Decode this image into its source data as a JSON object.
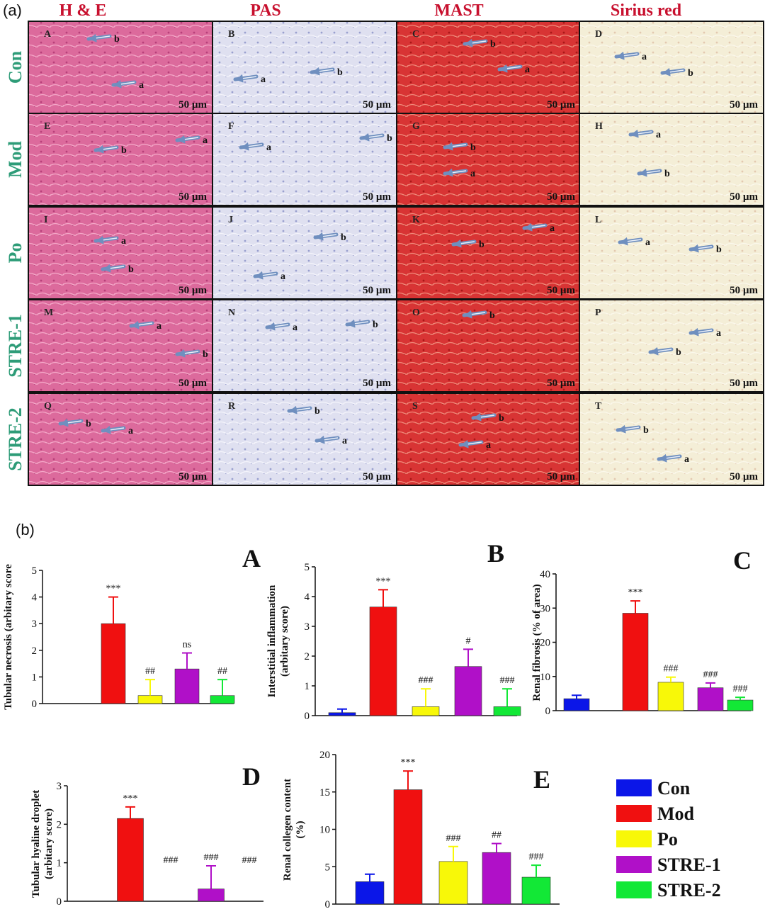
{
  "figure": {
    "panel_a_label": "(a)",
    "panel_b_label": "(b)"
  },
  "histology": {
    "columns": [
      "H & E",
      "PAS",
      "MAST",
      "Sirius red"
    ],
    "rows": [
      "Con",
      "Mod",
      "Po",
      "STRE-1",
      "STRE-2"
    ],
    "tiles": [
      {
        "letter": "A",
        "scale": "50 µm",
        "arrows": [
          "b",
          "a"
        ]
      },
      {
        "letter": "B",
        "scale": "50 µm",
        "arrows": [
          "a",
          "b"
        ]
      },
      {
        "letter": "C",
        "scale": "50 µm",
        "arrows": [
          "b",
          "a"
        ]
      },
      {
        "letter": "D",
        "scale": "50 µm",
        "arrows": [
          "a",
          "b"
        ]
      },
      {
        "letter": "E",
        "scale": "50 µm",
        "arrows": [
          "b",
          "a"
        ]
      },
      {
        "letter": "F",
        "scale": "50 µm",
        "arrows": [
          "a",
          "b"
        ]
      },
      {
        "letter": "G",
        "scale": "50 µm",
        "arrows": [
          "b",
          "a"
        ]
      },
      {
        "letter": "H",
        "scale": "50 µm",
        "arrows": [
          "a",
          "b"
        ]
      },
      {
        "letter": "I",
        "scale": "50 µm",
        "arrows": [
          "a",
          "b"
        ]
      },
      {
        "letter": "J",
        "scale": "50 µm",
        "arrows": [
          "b",
          "a"
        ]
      },
      {
        "letter": "K",
        "scale": "50 µm",
        "arrows": [
          "b",
          "a"
        ]
      },
      {
        "letter": "L",
        "scale": "50 µm",
        "arrows": [
          "a",
          "b"
        ]
      },
      {
        "letter": "M",
        "scale": "50 µm",
        "arrows": [
          "a",
          "b"
        ]
      },
      {
        "letter": "N",
        "scale": "50 µm",
        "arrows": [
          "a",
          "b"
        ]
      },
      {
        "letter": "O",
        "scale": "50 µm",
        "arrows": [
          "b"
        ]
      },
      {
        "letter": "P",
        "scale": "50 µm",
        "arrows": [
          "a",
          "b"
        ]
      },
      {
        "letter": "Q",
        "scale": "50 µm",
        "arrows": [
          "b",
          "a"
        ]
      },
      {
        "letter": "R",
        "scale": "50 µm",
        "arrows": [
          "b",
          "a"
        ]
      },
      {
        "letter": "S",
        "scale": "50 µm",
        "arrows": [
          "b",
          "a"
        ]
      },
      {
        "letter": "T",
        "scale": "50 µm",
        "arrows": [
          "b",
          "a"
        ]
      }
    ],
    "colors": {
      "column_title": "#c8102e",
      "row_label": "#2e9c78",
      "he": "#dc6a9c",
      "pas": "#dfe0f0",
      "mast": "#d83434",
      "sirius": "#f4eed7",
      "arrow": "#6f8fbf"
    }
  },
  "legend": {
    "items": [
      {
        "name": "Con",
        "color": "#0b16e8"
      },
      {
        "name": "Mod",
        "color": "#f01010"
      },
      {
        "name": "Po",
        "color": "#f8f808"
      },
      {
        "name": "STRE-1",
        "color": "#b010c8"
      },
      {
        "name": "STRE-2",
        "color": "#12e836"
      }
    ]
  },
  "chart_data": [
    {
      "type": "bar",
      "panel": "A",
      "ylabel": "Tubular necrosis (arbitary score",
      "ylim": [
        0,
        5
      ],
      "yticks": [
        0,
        1,
        2,
        3,
        4,
        5
      ],
      "categories": [
        "Con",
        "Mod",
        "Po",
        "STRE-1",
        "STRE-2"
      ],
      "values": [
        0,
        3.0,
        0.3,
        1.3,
        0.3
      ],
      "errors": [
        0,
        1.0,
        0.6,
        0.6,
        0.6
      ],
      "annotations": [
        "",
        "***",
        "##",
        "ns",
        "##"
      ]
    },
    {
      "type": "bar",
      "panel": "B",
      "ylabel": [
        "Interstitial inflammation",
        "(arbitary score)"
      ],
      "ylim": [
        0,
        5
      ],
      "yticks": [
        0,
        1,
        2,
        3,
        4,
        5
      ],
      "categories": [
        "Con",
        "Mod",
        "Po",
        "STRE-1",
        "STRE-2"
      ],
      "values": [
        0.1,
        3.65,
        0.3,
        1.65,
        0.3
      ],
      "errors": [
        0.12,
        0.58,
        0.6,
        0.58,
        0.6
      ],
      "annotations": [
        "",
        "***",
        "###",
        "#",
        "###"
      ]
    },
    {
      "type": "bar",
      "panel": "C",
      "ylabel": "Renal fibrosis (% of area)",
      "ylim": [
        0,
        40
      ],
      "yticks": [
        0,
        10,
        20,
        30,
        40
      ],
      "categories": [
        "Con",
        "Mod",
        "Po",
        "STRE-1",
        "STRE-2"
      ],
      "values": [
        3.5,
        28.5,
        8.3,
        6.7,
        3.1
      ],
      "errors": [
        1.0,
        3.6,
        1.5,
        1.4,
        0.8
      ],
      "annotations": [
        "",
        "***",
        "###",
        "###",
        "###"
      ]
    },
    {
      "type": "bar",
      "panel": "D",
      "ylabel": [
        "Tubular hyaline droplet",
        "(arbitary score)"
      ],
      "ylim": [
        0,
        3
      ],
      "yticks": [
        0,
        1,
        2,
        3
      ],
      "categories": [
        "Con",
        "Mod",
        "Po",
        "STRE-1",
        "STRE-2"
      ],
      "values": [
        0,
        2.15,
        0,
        0.32,
        0
      ],
      "errors": [
        0,
        0.3,
        0,
        0.6,
        0
      ],
      "annotations": [
        "",
        "***",
        "###",
        "###",
        "###"
      ]
    },
    {
      "type": "bar",
      "panel": "E",
      "ylabel": [
        "Renal collegen content",
        "(%)"
      ],
      "ylim": [
        0,
        20
      ],
      "yticks": [
        0,
        5,
        10,
        15,
        20
      ],
      "categories": [
        "Con",
        "Mod",
        "Po",
        "STRE-1",
        "STRE-2"
      ],
      "values": [
        3.0,
        15.3,
        5.7,
        6.9,
        3.6
      ],
      "errors": [
        1.0,
        2.5,
        2.0,
        1.2,
        1.6
      ],
      "annotations": [
        "",
        "***",
        "###",
        "##",
        "###"
      ]
    }
  ]
}
